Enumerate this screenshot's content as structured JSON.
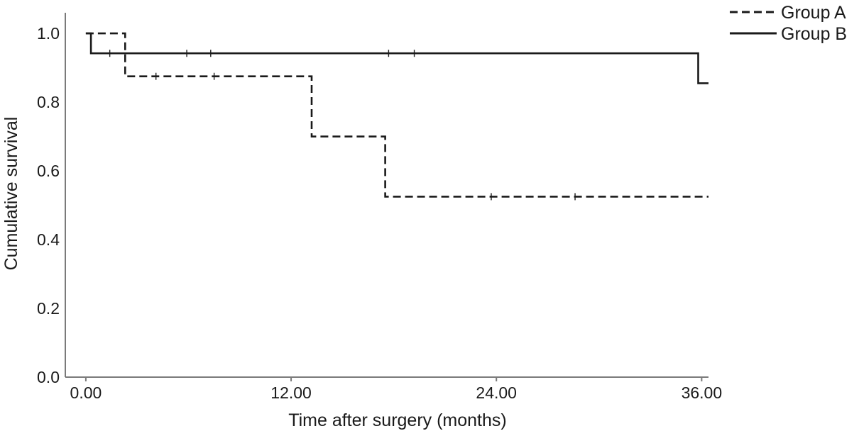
{
  "chart_data": {
    "type": "line",
    "subtype": "kaplan-meier-step",
    "xlabel": "Time after surgery (months)",
    "ylabel": "Cumulative survival",
    "xlim": [
      -1.2,
      36.4
    ],
    "ylim": [
      0,
      1.06
    ],
    "xticks": [
      0,
      12,
      24,
      36
    ],
    "xtick_labels": [
      "0.00",
      "12.00",
      "24.00",
      "36.00"
    ],
    "yticks": [
      0,
      0.2,
      0.4,
      0.6,
      0.8,
      1.0
    ],
    "ytick_labels": [
      "0.0",
      "0.2",
      "0.4",
      "0.6",
      "0.8",
      "1.0"
    ],
    "grid": false,
    "legend_position": "top-right",
    "series": [
      {
        "name": "Group A",
        "line_style": "dashed",
        "color": "#1a1a1a",
        "steps": [
          [
            0,
            1.0
          ],
          [
            2.3,
            0.875
          ],
          [
            13.2,
            0.7
          ],
          [
            17.5,
            0.525
          ],
          [
            36.4,
            0.525
          ]
        ],
        "censored": [
          [
            4.1,
            0.875
          ],
          [
            7.5,
            0.875
          ],
          [
            23.7,
            0.525
          ],
          [
            28.6,
            0.525
          ]
        ]
      },
      {
        "name": "Group B",
        "line_style": "solid",
        "color": "#1a1a1a",
        "steps": [
          [
            0,
            1.0
          ],
          [
            0.3,
            0.942
          ],
          [
            35.8,
            0.855
          ],
          [
            36.4,
            0.855
          ]
        ],
        "censored": [
          [
            1.4,
            0.942
          ],
          [
            5.9,
            0.942
          ],
          [
            7.3,
            0.942
          ],
          [
            17.7,
            0.942
          ],
          [
            19.2,
            0.942
          ]
        ]
      }
    ]
  }
}
